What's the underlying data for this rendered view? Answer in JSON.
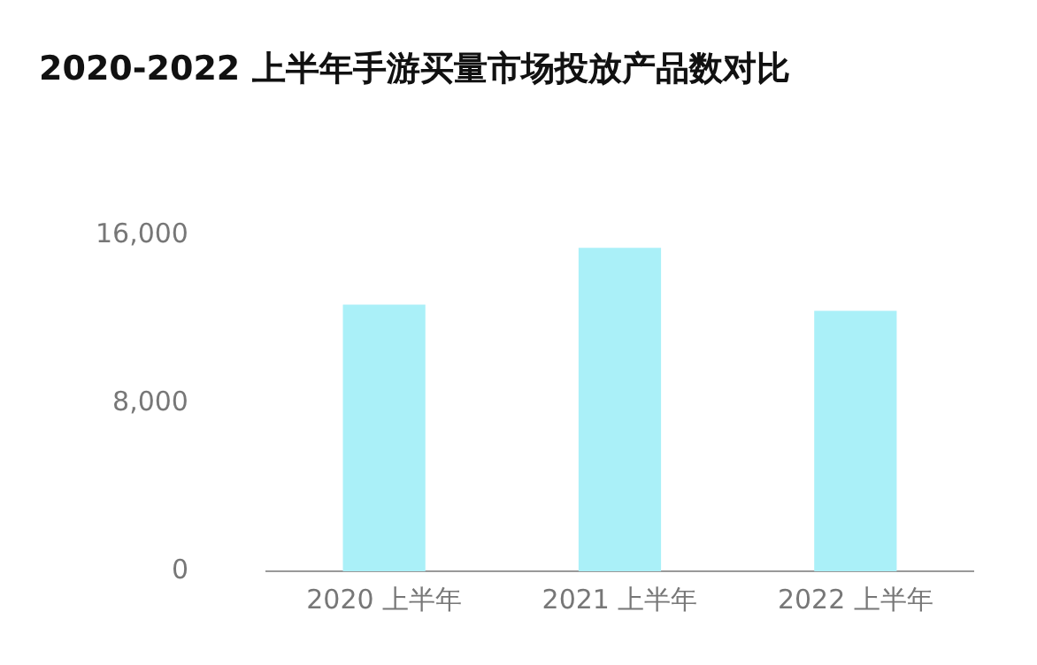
{
  "chart_data": {
    "type": "bar",
    "title": "2020-2022 上半年手游买量市场投放产品数对比",
    "categories": [
      "2020 上半年",
      "2021 上半年",
      "2022 上半年"
    ],
    "values": [
      12700,
      15400,
      12400
    ],
    "color": "#aaf0f8",
    "ylim": [
      0,
      16000
    ],
    "yticks": [
      0,
      {
        "value": 8000,
        "label": "8,000"
      },
      {
        "value": 16000,
        "label": "16,000"
      }
    ],
    "grid": false,
    "legend": false
  }
}
